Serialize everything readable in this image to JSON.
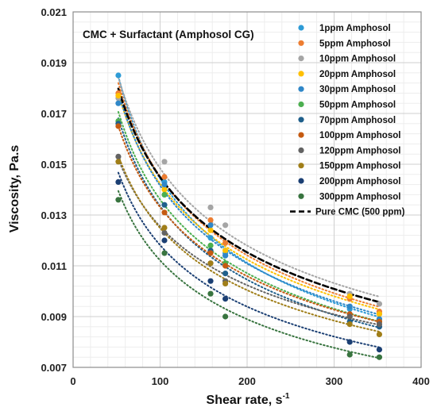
{
  "chart_data": {
    "type": "scatter",
    "annotation": "CMC + Surfactant (Amphosol CG)",
    "xlabel": "Shear rate, s",
    "xlabel_sup": "-1",
    "ylabel": "Viscosity, Pa.s",
    "xlim": [
      0,
      400
    ],
    "ylim": [
      0.007,
      0.021
    ],
    "x_ticks": [
      "0",
      "100",
      "200",
      "300",
      "400"
    ],
    "y_ticks": [
      "0.007",
      "0.009",
      "0.011",
      "0.013",
      "0.015",
      "0.017",
      "0.019",
      "0.021"
    ],
    "grid": true,
    "legend_position": "top-right",
    "x": [
      52,
      105,
      158,
      175,
      318,
      352
    ],
    "series": [
      {
        "name": "1ppm Amphosol",
        "color": "#2e9bd6",
        "values": [
          0.0185,
          0.0143,
          0.0121,
          0.0115,
          0.0093,
          0.0091
        ]
      },
      {
        "name": "5ppm Amphosol",
        "color": "#ed7d31",
        "values": [
          0.0178,
          0.0145,
          0.0128,
          0.0119,
          0.0097,
          0.0092
        ]
      },
      {
        "name": "10ppm Amphosol",
        "color": "#a5a5a5",
        "values": [
          0.0176,
          0.0151,
          0.0133,
          0.0126,
          0.0099,
          0.0095
        ]
      },
      {
        "name": "20ppm Amphosol",
        "color": "#ffc000",
        "values": [
          0.0177,
          0.014,
          0.0124,
          0.0116,
          0.0098,
          0.0091
        ]
      },
      {
        "name": "30ppm Amphosol",
        "color": "#2f87c8",
        "values": [
          0.0174,
          0.0142,
          0.0126,
          0.0114,
          0.0094,
          0.0089
        ]
      },
      {
        "name": "50ppm Amphosol",
        "color": "#4caf50",
        "values": [
          0.0167,
          0.0138,
          0.0118,
          0.0111,
          0.009,
          0.0088
        ]
      },
      {
        "name": "70ppm Amphosol",
        "color": "#1f5f8b",
        "values": [
          0.0166,
          0.0134,
          0.0116,
          0.0107,
          0.0088,
          0.0086
        ]
      },
      {
        "name": "100ppm Amphosol",
        "color": "#c55a11",
        "values": [
          0.0165,
          0.0131,
          0.0115,
          0.011,
          0.0091,
          0.0088
        ]
      },
      {
        "name": "120ppm Amphosol",
        "color": "#636363",
        "values": [
          0.0153,
          0.0123,
          0.0111,
          0.0104,
          0.009,
          0.0087
        ]
      },
      {
        "name": "150ppm Amphosol",
        "color": "#a07e18",
        "values": [
          0.0151,
          0.0125,
          0.0111,
          0.0103,
          0.0087,
          0.0083
        ]
      },
      {
        "name": "200ppm Amphosol",
        "color": "#1b3f73",
        "values": [
          0.0143,
          0.012,
          0.0104,
          0.0097,
          0.008,
          0.0077
        ]
      },
      {
        "name": "300ppm Amphosol",
        "color": "#38743f",
        "values": [
          0.0136,
          0.0115,
          0.0099,
          0.009,
          0.0075,
          0.0074
        ]
      },
      {
        "name": "Pure CMC (500 ppm)",
        "color": "#000000",
        "style": "dashed",
        "values": [
          0.0177,
          0.0144,
          0.0128,
          0.012,
          0.0098,
          0.0095
        ]
      }
    ]
  }
}
